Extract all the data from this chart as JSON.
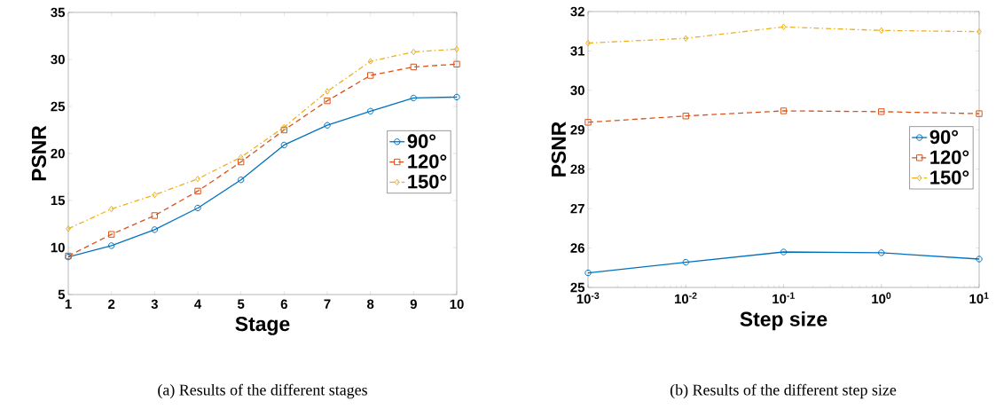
{
  "chart_data": [
    {
      "type": "line",
      "xlabel": "Stage",
      "ylabel": "PSNR",
      "x": [
        1,
        2,
        3,
        4,
        5,
        6,
        7,
        8,
        9,
        10
      ],
      "xlim": [
        1,
        10
      ],
      "ylim": [
        5,
        35
      ],
      "xticks": [
        1,
        2,
        3,
        4,
        5,
        6,
        7,
        8,
        9,
        10
      ],
      "yticks": [
        5,
        10,
        15,
        20,
        25,
        30,
        35
      ],
      "legend": "right",
      "grid": false,
      "series": [
        {
          "name": "90°",
          "color": "#0072bd",
          "marker": "circle",
          "line_style": "solid",
          "values": [
            9.0,
            10.2,
            11.9,
            14.2,
            17.2,
            20.9,
            23.0,
            24.5,
            25.9,
            26.0
          ]
        },
        {
          "name": "120°",
          "color": "#d95319",
          "marker": "square",
          "line_style": "dashed",
          "values": [
            9.1,
            11.4,
            13.4,
            16.0,
            19.1,
            22.5,
            25.6,
            28.3,
            29.2,
            29.5
          ]
        },
        {
          "name": "150°",
          "color": "#edb120",
          "marker": "diamond",
          "line_style": "dashdot",
          "values": [
            12.0,
            14.1,
            15.6,
            17.3,
            19.6,
            22.8,
            26.6,
            29.8,
            30.8,
            31.1
          ]
        }
      ],
      "annotations": [
        "(a) Results of the different stages"
      ]
    },
    {
      "type": "line",
      "xlabel": "Step size",
      "ylabel": "PSNR",
      "x": [
        0.001,
        0.01,
        0.1,
        1,
        10
      ],
      "log": "x",
      "xlim": [
        0.001,
        10
      ],
      "ylim": [
        25,
        32
      ],
      "xticks": [
        {
          "value": 0.001,
          "label": "10$^{-3}$"
        },
        {
          "value": 0.01,
          "label": "10$^{-2}$"
        },
        {
          "value": 0.1,
          "label": "10$^{-1}$"
        },
        {
          "value": 1,
          "label": "10$^{0}$"
        },
        {
          "value": 10,
          "label": "10$^{1}$"
        }
      ],
      "yticks": [
        25,
        26,
        27,
        28,
        29,
        30,
        31,
        32
      ],
      "legend": "right",
      "grid": false,
      "series": [
        {
          "name": "90°",
          "color": "#0072bd",
          "marker": "circle",
          "line_style": "solid",
          "values": [
            25.37,
            25.64,
            25.9,
            25.88,
            25.72
          ]
        },
        {
          "name": "120°",
          "color": "#d95319",
          "marker": "square",
          "line_style": "dashed",
          "values": [
            29.19,
            29.35,
            29.48,
            29.46,
            29.41
          ]
        },
        {
          "name": "150°",
          "color": "#edb120",
          "marker": "diamond",
          "line_style": "dashdot",
          "values": [
            31.2,
            31.32,
            31.61,
            31.52,
            31.49
          ]
        }
      ],
      "annotations": [
        "(b) Results of the different step size"
      ]
    }
  ]
}
